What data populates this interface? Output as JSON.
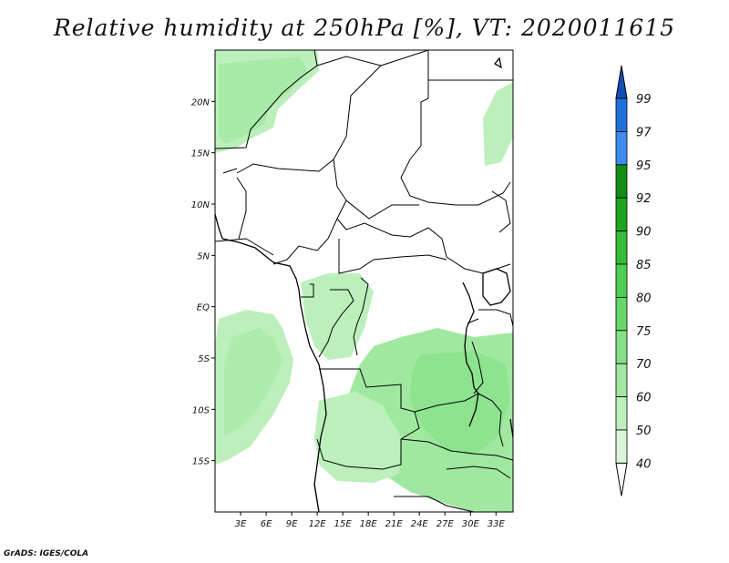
{
  "title": "Relative humidity at 250hPa [%], VT: 2020011615",
  "footer": "GrADS: IGES/COLA",
  "map": {
    "lon_range": [
      0,
      35
    ],
    "lat_range": [
      -20,
      25
    ],
    "lat_ticks": [
      {
        "value": 20,
        "label": "20N"
      },
      {
        "value": 15,
        "label": "15N"
      },
      {
        "value": 10,
        "label": "10N"
      },
      {
        "value": 5,
        "label": "5N"
      },
      {
        "value": 0,
        "label": "EQ"
      },
      {
        "value": -5,
        "label": "5S"
      },
      {
        "value": -10,
        "label": "10S"
      },
      {
        "value": -15,
        "label": "15S"
      }
    ],
    "lon_ticks": [
      {
        "value": 3,
        "label": "3E"
      },
      {
        "value": 6,
        "label": "6E"
      },
      {
        "value": 9,
        "label": "9E"
      },
      {
        "value": 12,
        "label": "12E"
      },
      {
        "value": 15,
        "label": "15E"
      },
      {
        "value": 18,
        "label": "18E"
      },
      {
        "value": 21,
        "label": "21E"
      },
      {
        "value": 24,
        "label": "24E"
      },
      {
        "value": 27,
        "label": "27E"
      },
      {
        "value": 30,
        "label": "30E"
      },
      {
        "value": 33,
        "label": "33E"
      }
    ]
  },
  "colorbar": {
    "levels": [
      "40",
      "50",
      "60",
      "70",
      "75",
      "80",
      "85",
      "90",
      "92",
      "95",
      "97",
      "99"
    ],
    "colors": [
      "#f0fcf0",
      "#d8f5d8",
      "#bcefbc",
      "#a0e8a0",
      "#84e084",
      "#66d866",
      "#4fcf4f",
      "#34bc34",
      "#1ea51e",
      "#148c14",
      "#3c8cf0",
      "#2070dc",
      "#1450b4"
    ]
  }
}
